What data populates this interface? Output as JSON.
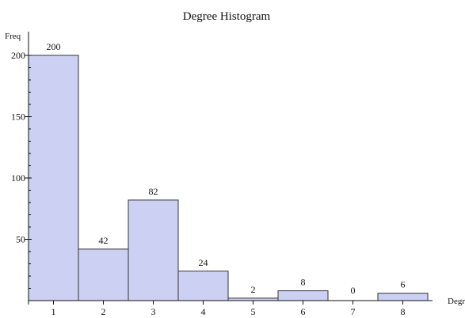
{
  "chart_data": {
    "type": "bar",
    "title": "Degree Histogram",
    "xlabel": "Degree",
    "ylabel": "Freq",
    "categories": [
      "1",
      "2",
      "3",
      "4",
      "5",
      "6",
      "7",
      "8"
    ],
    "values": [
      200,
      42,
      82,
      24,
      2,
      8,
      0,
      6
    ],
    "data_labels": [
      "200",
      "42",
      "82",
      "24",
      "2",
      "8",
      "0",
      "6"
    ],
    "y_ticks": [
      50,
      100,
      150,
      200
    ],
    "y_tick_labels": [
      "50",
      "100",
      "150",
      "200"
    ],
    "ylim": [
      0,
      210
    ],
    "bar_color": "#ccd0f2",
    "bar_edge_color": "#333333",
    "grid": false,
    "legend": "none"
  }
}
